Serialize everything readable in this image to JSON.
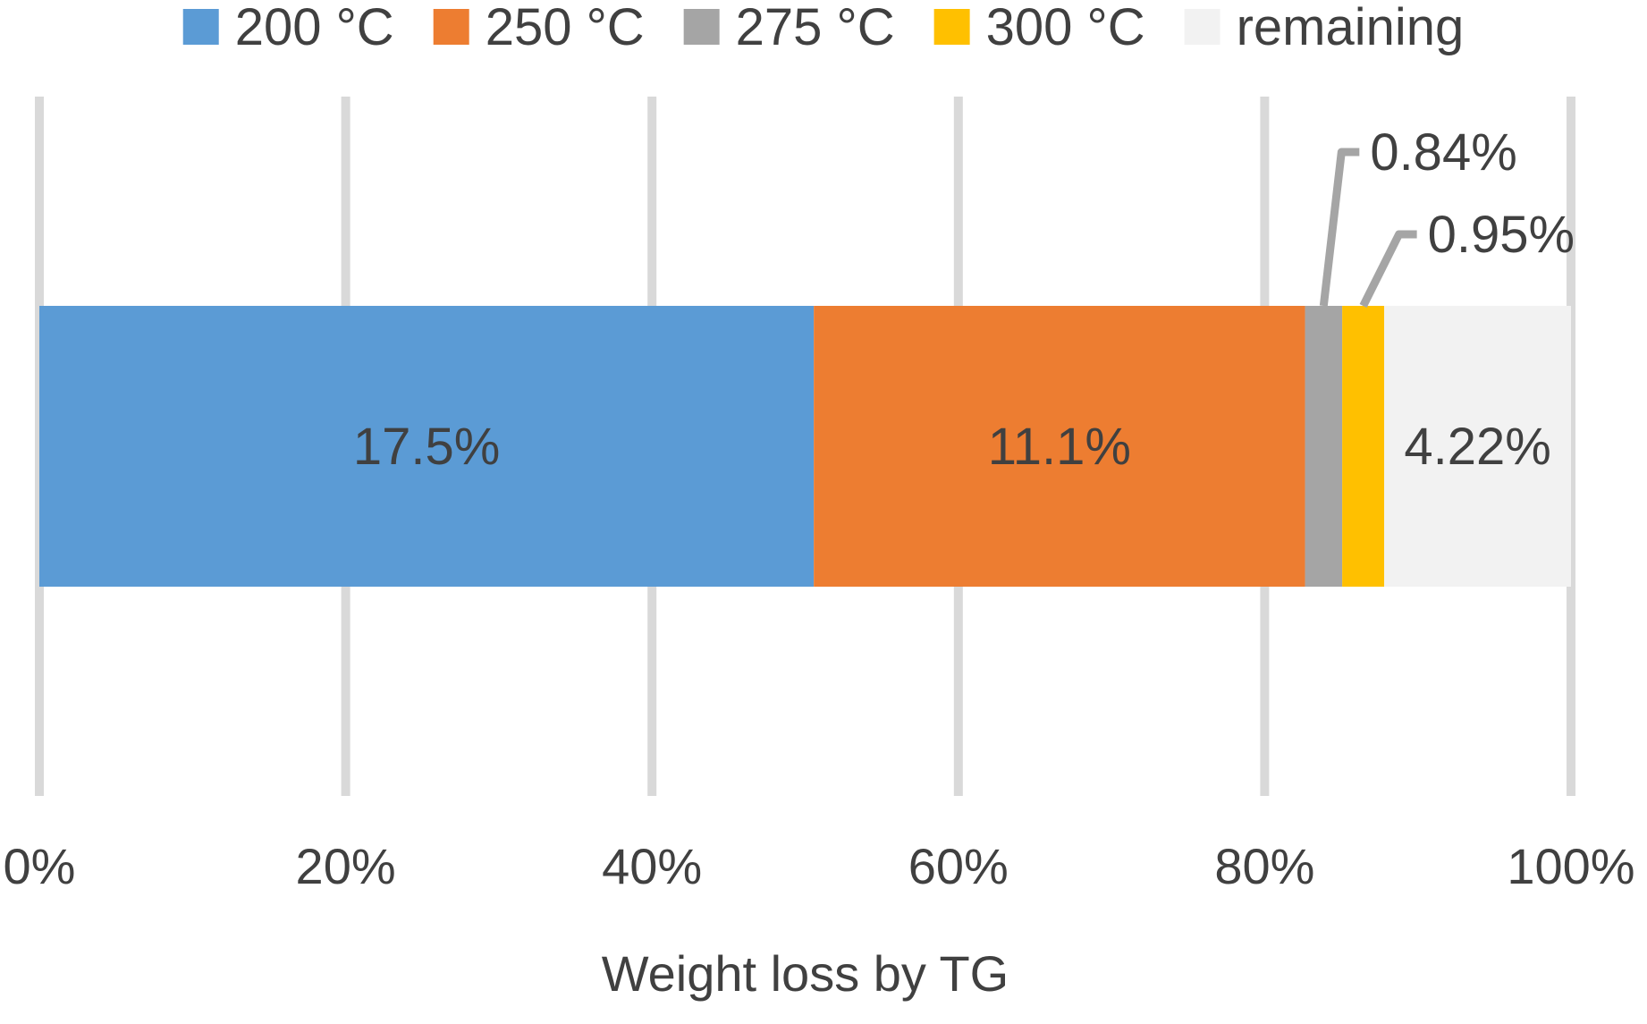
{
  "chart_data": {
    "type": "bar",
    "orientation": "horizontal",
    "stacking": "percent",
    "title": "",
    "xlabel": "Weight loss by TG",
    "ylabel": "",
    "xlim": [
      0,
      100
    ],
    "x_ticks": [
      0,
      20,
      40,
      60,
      80,
      100
    ],
    "x_tick_labels": [
      "0%",
      "20%",
      "40%",
      "60%",
      "80%",
      "100%"
    ],
    "grid": "vertical",
    "legend_position": "top",
    "categories": [
      ""
    ],
    "series": [
      {
        "name": "200 °C",
        "values": [
          17.5
        ],
        "label": "17.5%",
        "color": "#5B9BD5",
        "label_mode": "inside"
      },
      {
        "name": "250 °C",
        "values": [
          11.1
        ],
        "label": "11.1%",
        "color": "#ED7D31",
        "label_mode": "inside"
      },
      {
        "name": "275 °C",
        "values": [
          0.84
        ],
        "label": "0.84%",
        "color": "#A5A5A5",
        "label_mode": "callout"
      },
      {
        "name": "300 °C",
        "values": [
          0.95
        ],
        "label": "0.95%",
        "color": "#FFC000",
        "label_mode": "callout"
      },
      {
        "name": "remaining",
        "values": [
          4.22
        ],
        "label": "4.22%",
        "color": "#F2F2F2",
        "label_mode": "inside"
      }
    ],
    "colors": {
      "grid": "#D9D9D9",
      "text": "#404040",
      "callout_line": "#A5A5A5"
    }
  }
}
